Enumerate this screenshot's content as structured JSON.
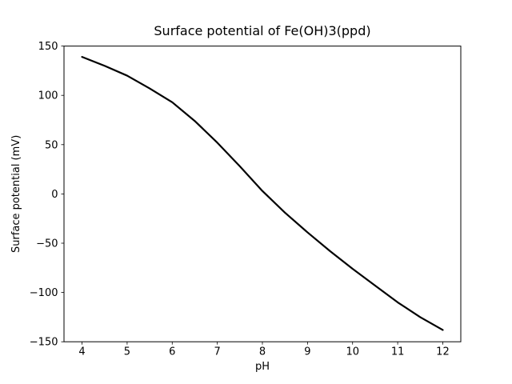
{
  "chart_data": {
    "type": "line",
    "title": "Surface potential of Fe(OH)3(ppd)",
    "xlabel": "pH",
    "ylabel": "Surface potential (mV)",
    "xlim": [
      3.6,
      12.4
    ],
    "ylim": [
      -150,
      150
    ],
    "x_ticks": [
      4,
      5,
      6,
      7,
      8,
      9,
      10,
      11,
      12
    ],
    "x_tick_labels": [
      "4",
      "5",
      "6",
      "7",
      "8",
      "9",
      "10",
      "11",
      "12"
    ],
    "y_ticks": [
      -150,
      -100,
      -50,
      0,
      50,
      100,
      150
    ],
    "y_tick_labels": [
      "−150",
      "−100",
      "−50",
      "0",
      "50",
      "100",
      "150"
    ],
    "grid": false,
    "legend": "none",
    "line_color": "#000000",
    "line_width": 2.2,
    "series": [
      {
        "name": "surface-potential",
        "x": [
          4.0,
          4.5,
          5.0,
          5.5,
          6.0,
          6.5,
          7.0,
          7.5,
          8.0,
          8.5,
          9.0,
          9.5,
          10.0,
          10.5,
          11.0,
          11.5,
          12.0
        ],
        "y": [
          139,
          130,
          120,
          107,
          93,
          74,
          52,
          28,
          3,
          -19,
          -39,
          -58,
          -76,
          -93,
          -110,
          -125,
          -138
        ]
      }
    ]
  }
}
